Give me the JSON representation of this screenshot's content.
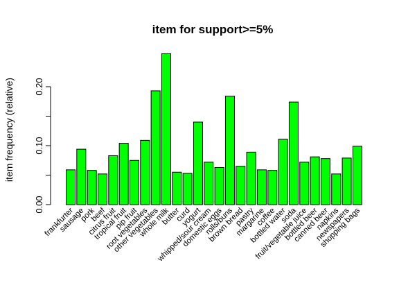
{
  "chart_data": {
    "type": "bar",
    "title": "item for support>=5%",
    "xlabel": "",
    "ylabel": "item frequency (relative)",
    "ylim": [
      0,
      0.25
    ],
    "yticks": [
      "0.00",
      "0.10",
      "0.20"
    ],
    "ytick_values": [
      0.0,
      0.1,
      0.2
    ],
    "bar_color": "#00ff00",
    "categories": [
      "frankfurter",
      "sausage",
      "pork",
      "beef",
      "citrus fruit",
      "tropical fruit",
      "pip fruit",
      "root vegetables",
      "other vegetables",
      "whole milk",
      "butter",
      "curd",
      "yogurt",
      "whipped/sour cream",
      "domestic eggs",
      "rolls/buns",
      "brown bread",
      "pastry",
      "margarine",
      "coffee",
      "bottled water",
      "soda",
      "fruit/vegetable juice",
      "bottled beer",
      "canned beer",
      "napkins",
      "newspapers",
      "shopping bags"
    ],
    "values": [
      0.059,
      0.094,
      0.058,
      0.052,
      0.083,
      0.104,
      0.075,
      0.109,
      0.193,
      0.256,
      0.055,
      0.053,
      0.14,
      0.072,
      0.063,
      0.184,
      0.065,
      0.089,
      0.059,
      0.058,
      0.111,
      0.174,
      0.072,
      0.081,
      0.078,
      0.052,
      0.079,
      0.099
    ]
  }
}
